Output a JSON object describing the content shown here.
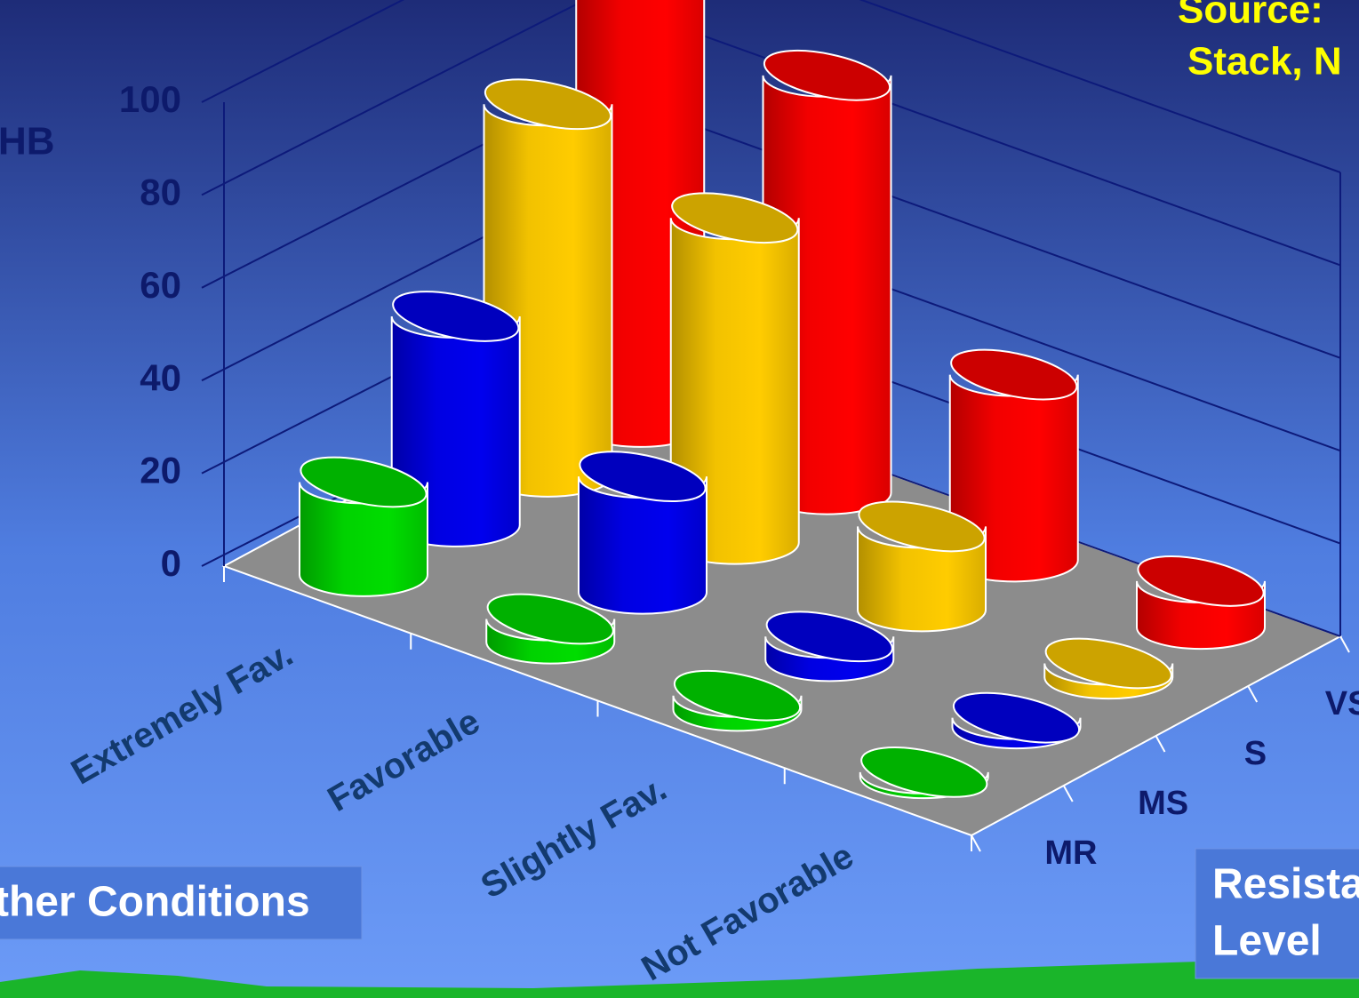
{
  "chart_data": {
    "type": "bar3d",
    "y_label": "HB",
    "source": [
      "Source:",
      "Stack, N"
    ],
    "x_label": "ther Conditions",
    "legend_title": [
      "Resista",
      "Level"
    ],
    "categories": [
      "Extremely Fav.",
      "Favorable",
      "Slightly Fav.",
      "Not Favorable"
    ],
    "series": [
      {
        "name": "MR",
        "color": "#00dd00",
        "values": [
          20,
          5,
          3,
          1
        ]
      },
      {
        "name": "MS",
        "color": "#0000ee",
        "values": [
          45,
          25,
          5,
          2
        ]
      },
      {
        "name": "S",
        "color": "#ffcc00",
        "values": [
          80,
          70,
          18,
          3
        ]
      },
      {
        "name": "VS",
        "color": "#ff0000",
        "values": [
          100,
          90,
          40,
          10
        ]
      }
    ],
    "ylim": [
      0,
      100
    ],
    "yticks": [
      0,
      20,
      40,
      60,
      80,
      100
    ],
    "grid": true
  }
}
